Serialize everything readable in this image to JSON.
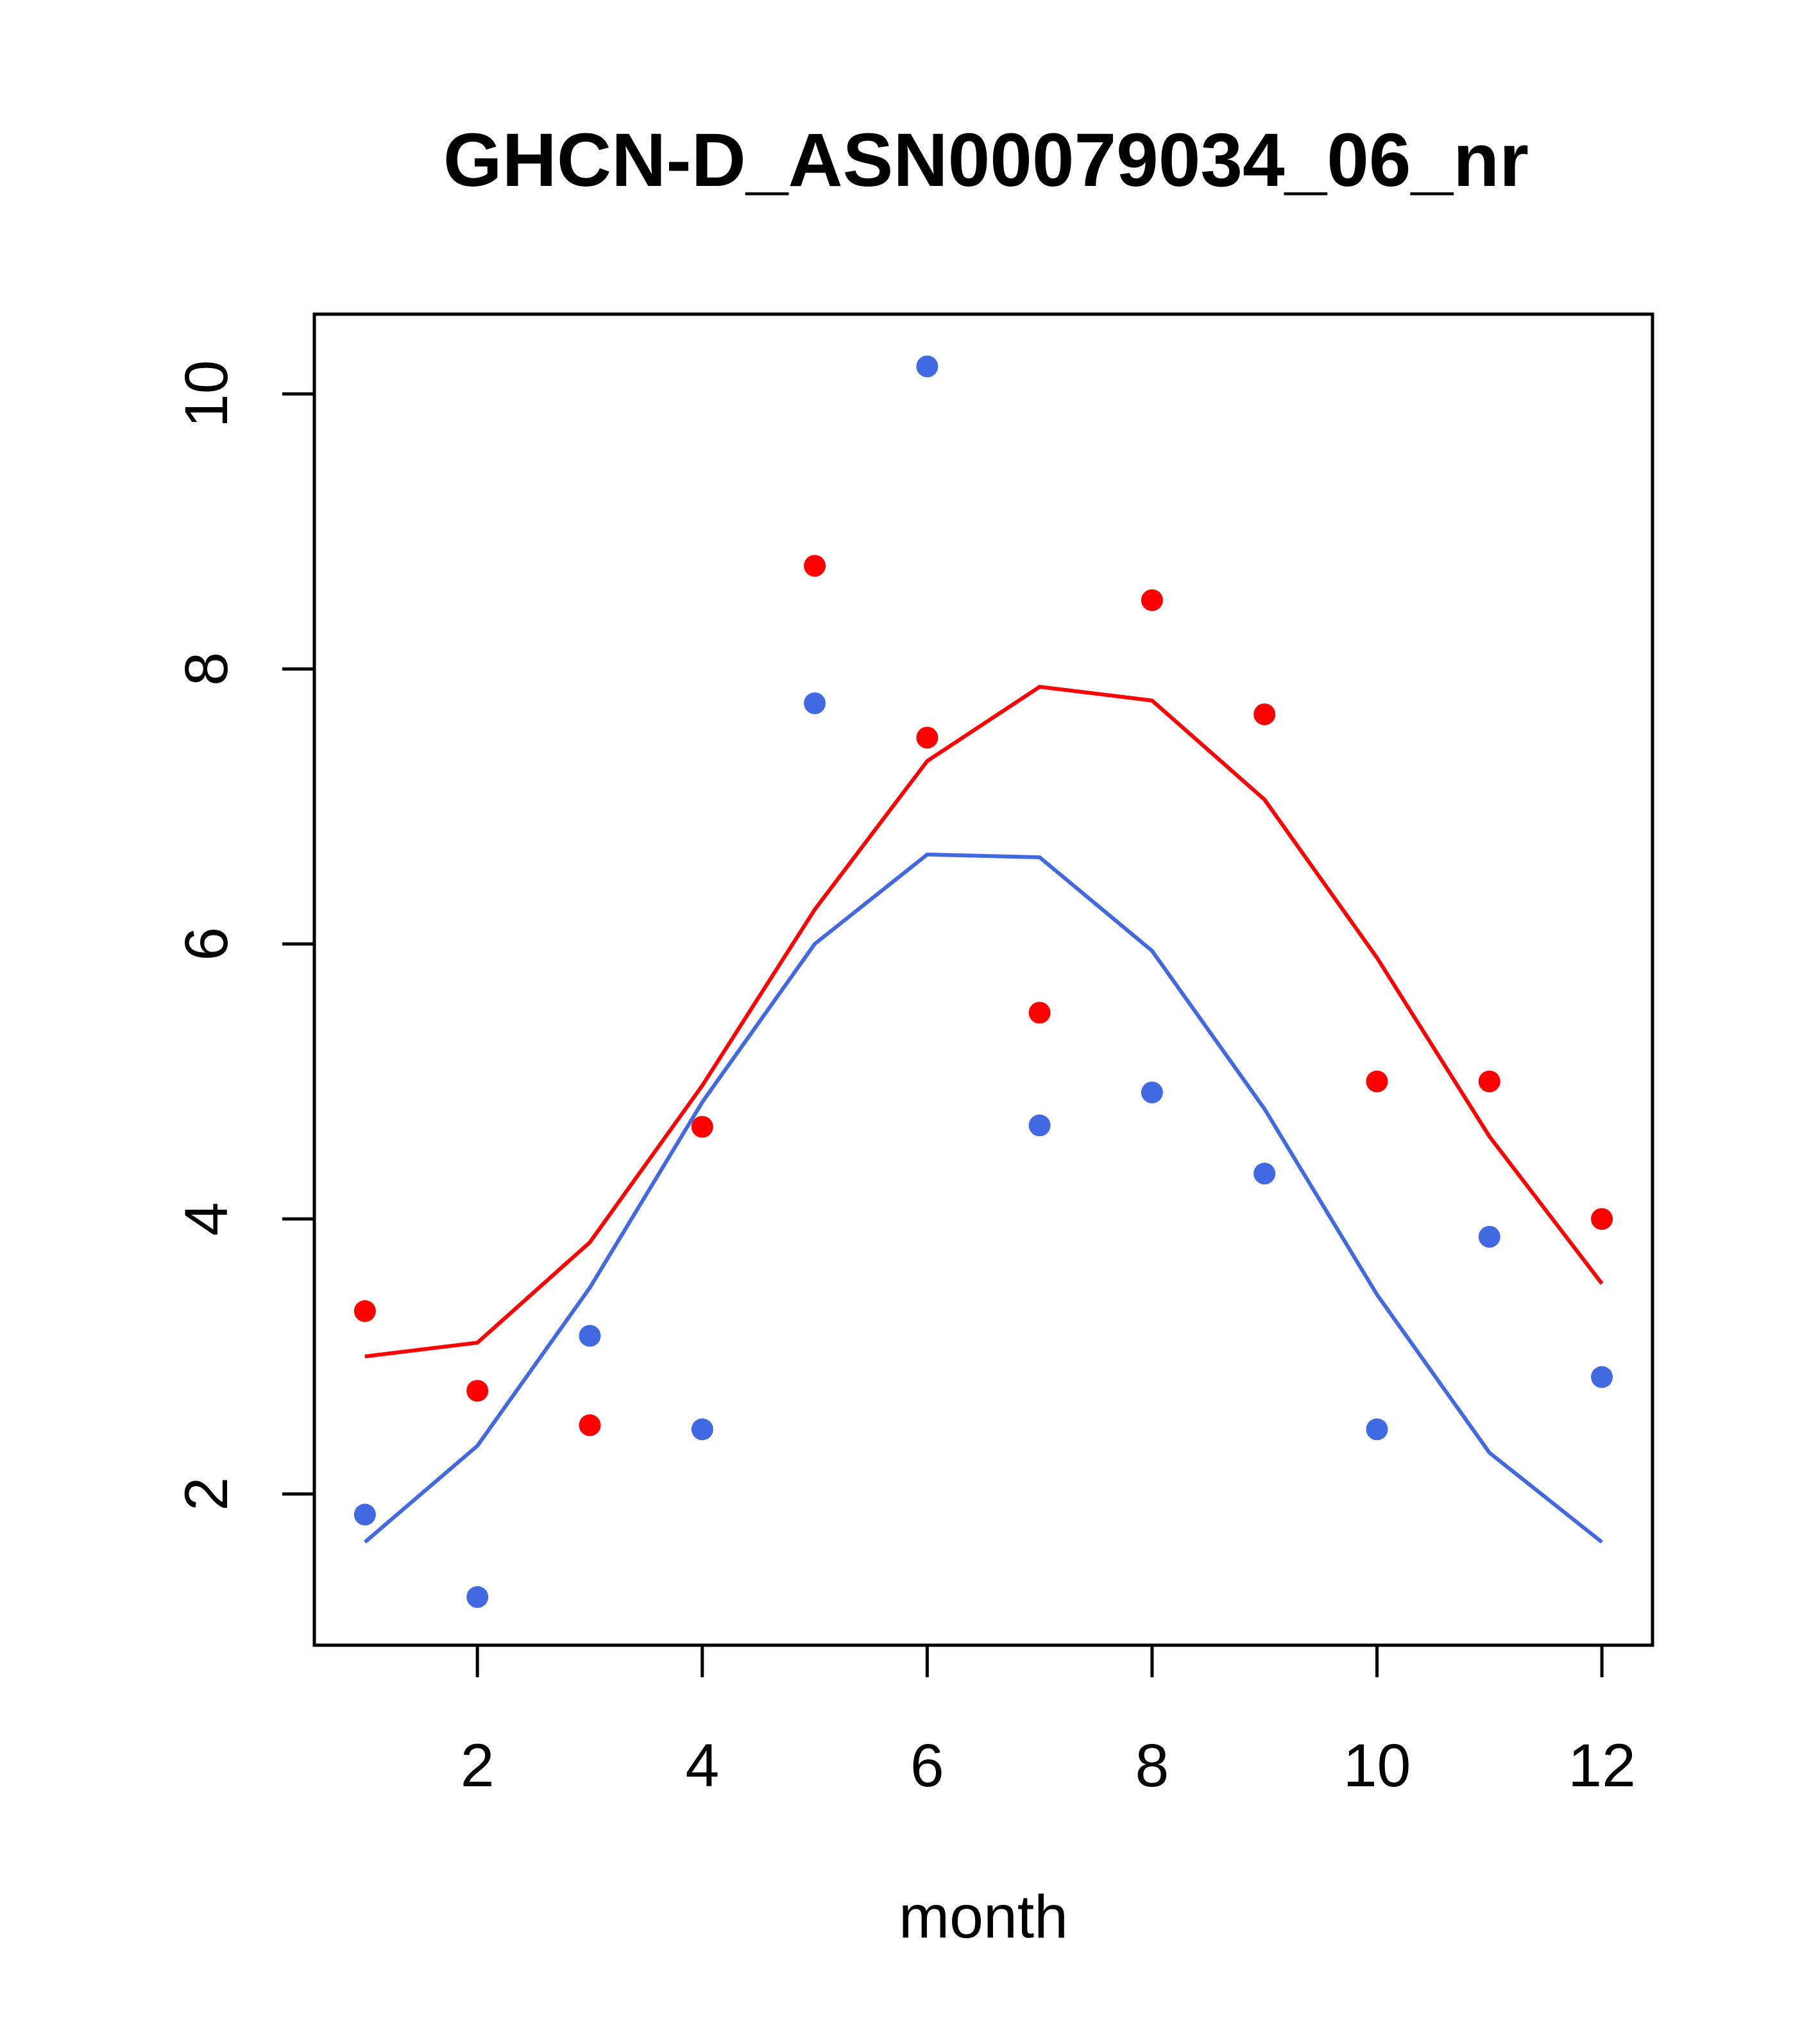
{
  "chart_data": {
    "type": "scatter",
    "title": "GHCN-D_ASN00079034_06_nr",
    "xlabel": "month",
    "ylabel": "",
    "xlim": [
      0.55,
      12.45
    ],
    "ylim": [
      0.9,
      10.58
    ],
    "xticks": [
      2,
      4,
      6,
      8,
      10,
      12
    ],
    "yticks": [
      2,
      4,
      6,
      8,
      10
    ],
    "grid": false,
    "legend": "none",
    "x": [
      1,
      2,
      3,
      4,
      5,
      6,
      7,
      8,
      9,
      10,
      11,
      12
    ],
    "series": [
      {
        "color": "#FF0000",
        "points": [
          3.33,
          2.75,
          2.5,
          4.67,
          8.75,
          7.5,
          5.5,
          8.5,
          7.67,
          5.0,
          5.0,
          4.0
        ],
        "line": [
          3.0,
          3.1,
          3.83,
          4.97,
          6.25,
          7.33,
          7.87,
          7.77,
          7.05,
          5.9,
          4.6,
          3.53
        ]
      },
      {
        "color": "#4169E1",
        "points": [
          1.85,
          1.25,
          3.15,
          2.47,
          7.75,
          10.2,
          4.68,
          4.92,
          4.33,
          2.47,
          3.87,
          2.85
        ],
        "line": [
          1.65,
          2.35,
          3.5,
          4.85,
          6.0,
          6.65,
          6.63,
          5.95,
          4.8,
          3.45,
          2.3,
          1.65
        ]
      }
    ]
  }
}
